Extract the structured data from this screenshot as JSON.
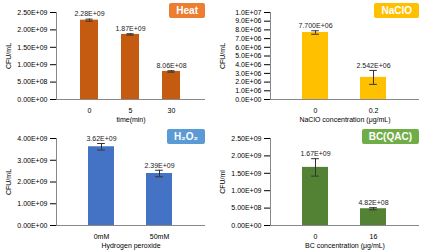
{
  "chart_data": [
    {
      "type": "bar",
      "title": "Heat",
      "categories": [
        "0",
        "5",
        "30"
      ],
      "values": [
        2280000000,
        1870000000,
        806000000
      ],
      "value_labels": [
        "2.28E+09",
        "1.87E+09",
        "8.06E+08"
      ],
      "errors": [
        30000000,
        20000000,
        20000000
      ],
      "color": "#c55a11",
      "x_label": "time(min)",
      "y_label": "CFU/mL",
      "data_labels": true,
      "ylim": [
        0,
        2500000000
      ],
      "yticks": [
        {
          "value": 0,
          "label": "0.00E+00"
        },
        {
          "value": 500000000,
          "label": "5.00E+08"
        },
        {
          "value": 1000000000,
          "label": "1.00E+09"
        },
        {
          "value": 1500000000,
          "label": "1.50E+09"
        },
        {
          "value": 2000000000,
          "label": "2.00E+09"
        },
        {
          "value": 2500000000,
          "label": "2.50E+09"
        }
      ]
    },
    {
      "type": "bar",
      "title": "NaClO",
      "categories": [
        "0",
        "0.2"
      ],
      "values": [
        7700000,
        2542000
      ],
      "value_labels": [
        "7.700E+06",
        "2.542E+06"
      ],
      "errors": [
        200000,
        800000
      ],
      "color": "#ffc000",
      "x_label": "NaClO concentration (μg/mL)",
      "y_label": "CFU/mL",
      "data_labels": true,
      "ylim": [
        0,
        10000000
      ],
      "yticks": [
        {
          "value": 0,
          "label": "0.0E+00"
        },
        {
          "value": 1000000,
          "label": "1.0E+06"
        },
        {
          "value": 2000000,
          "label": "2.0E+06"
        },
        {
          "value": 3000000,
          "label": "3.0E+06"
        },
        {
          "value": 4000000,
          "label": "4.0E+06"
        },
        {
          "value": 5000000,
          "label": "5.0E+06"
        },
        {
          "value": 6000000,
          "label": "6.0E+06"
        },
        {
          "value": 7000000,
          "label": "7.0E+06"
        },
        {
          "value": 8000000,
          "label": "8.0E+06"
        },
        {
          "value": 9000000,
          "label": "9.0E+06"
        },
        {
          "value": 10000000,
          "label": "1.0E+07"
        }
      ]
    },
    {
      "type": "bar",
      "title": "H₂O₂",
      "categories": [
        "0mM",
        "50mM"
      ],
      "values": [
        3620000000,
        2390000000
      ],
      "value_labels": [
        "3.62E+09",
        "2.39E+09"
      ],
      "errors": [
        150000000,
        150000000
      ],
      "color": "#4472c4",
      "x_label": "Hydrogen peroxide",
      "y_label": "CFU/mL",
      "data_labels": true,
      "ylim": [
        0,
        4000000000
      ],
      "yticks": [
        {
          "value": 0,
          "label": "0.00E+00"
        },
        {
          "value": 1000000000,
          "label": "1.00E+09"
        },
        {
          "value": 2000000000,
          "label": "2.00E+09"
        },
        {
          "value": 3000000000,
          "label": "3.00E+09"
        },
        {
          "value": 4000000000,
          "label": "4.00E+09"
        }
      ]
    },
    {
      "type": "bar",
      "title": "BC(QAC)",
      "categories": [
        "0",
        "16"
      ],
      "values": [
        1670000000,
        482000000
      ],
      "value_labels": [
        "1.67E+09",
        "4.82E+08"
      ],
      "errors": [
        250000000,
        30000000
      ],
      "color": "#548235",
      "x_label": "BC concentration (μg/mL)",
      "y_label": "CFU/ml",
      "data_labels": true,
      "ylim": [
        0,
        2500000000
      ],
      "yticks": [
        {
          "value": 0,
          "label": "0.00E+00"
        },
        {
          "value": 500000000,
          "label": "5.00E+08"
        },
        {
          "value": 1000000000,
          "label": "1.00E+09"
        },
        {
          "value": 1500000000,
          "label": "1.50E+09"
        },
        {
          "value": 2000000000,
          "label": "2.00E+09"
        },
        {
          "value": 2500000000,
          "label": "2.50E+09"
        }
      ]
    }
  ]
}
